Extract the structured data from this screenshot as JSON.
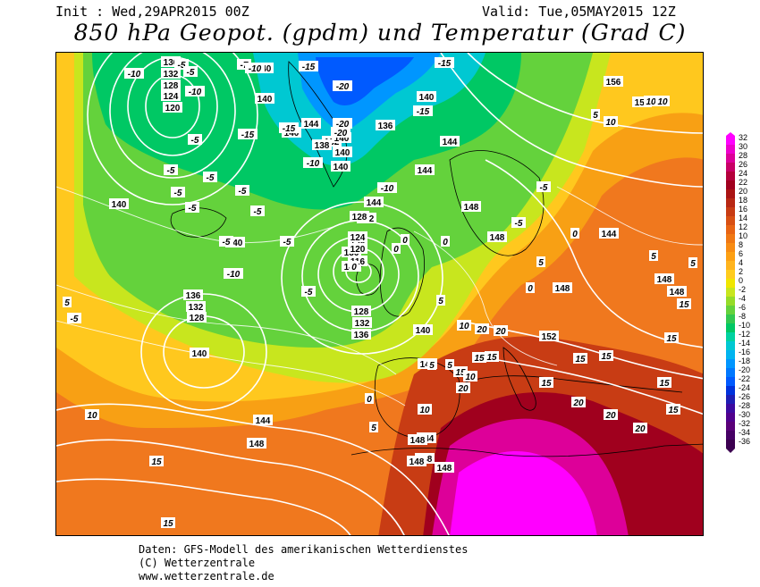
{
  "header": {
    "init": "Init : Wed,29APR2015 00Z",
    "valid": "Valid: Tue,05MAY2015 12Z",
    "title": "850 hPa Geopot. (gpdm) und Temperatur (Grad C)"
  },
  "credits": {
    "line1": "Daten: GFS-Modell des amerikanischen Wetterdienstes",
    "line2": "(C) Wetterzentrale",
    "line3": "www.wetterzentrale.de"
  },
  "legend": {
    "labels": [
      "32",
      "30",
      "28",
      "26",
      "24",
      "22",
      "20",
      "18",
      "16",
      "14",
      "12",
      "10",
      "8",
      "6",
      "4",
      "2",
      "0",
      "-2",
      "-4",
      "-6",
      "-8",
      "-10",
      "-12",
      "-14",
      "-16",
      "-18",
      "-20",
      "-22",
      "-24",
      "-26",
      "-28",
      "-30",
      "-32",
      "-34",
      "-36"
    ],
    "colors": [
      "#ff00ff",
      "#ee00cc",
      "#dd0099",
      "#c80066",
      "#b4003c",
      "#a0001e",
      "#aa1414",
      "#b82814",
      "#c83c14",
      "#d85014",
      "#e86414",
      "#f07814",
      "#f88c14",
      "#fda014",
      "#ffb41e",
      "#ffcc1e",
      "#f0e600",
      "#c8e61e",
      "#96dc28",
      "#64d23c",
      "#32c850",
      "#00c864",
      "#00d2a0",
      "#00c8d2",
      "#00b4f0",
      "#0096ff",
      "#0078ff",
      "#005aff",
      "#0032dc",
      "#1e1eb4",
      "#3c0aa0",
      "#50008c",
      "#5a0078",
      "#460064",
      "#3c0050"
    ]
  },
  "map": {
    "height_labels": [
      "136",
      "132",
      "128",
      "124",
      "120",
      "140",
      "140",
      "144",
      "140",
      "132",
      "128",
      "136",
      "140",
      "144",
      "138",
      "140",
      "140",
      "140",
      "144",
      "136",
      "140",
      "132",
      "128",
      "124",
      "120",
      "116",
      "128",
      "132",
      "136",
      "140",
      "144",
      "148",
      "148",
      "144",
      "140",
      "136",
      "132",
      "128",
      "140",
      "144",
      "148",
      "144",
      "148",
      "148",
      "152",
      "156",
      "152",
      "148",
      "148",
      "148",
      "148",
      "144",
      "148",
      "140"
    ],
    "temp_labels": [
      "-10",
      "-5",
      "-5",
      "-10",
      "-5",
      "-7",
      "-10",
      "-15",
      "-15",
      "-20",
      "-20",
      "-20",
      "-15",
      "-15",
      "-10",
      "-5",
      "-5",
      "-10",
      "-5",
      "-5",
      "-5",
      "-5",
      "-5",
      "-5",
      "-10",
      "-15",
      "-5",
      "-5",
      "-5",
      "-5",
      "0",
      "0",
      "0",
      "0",
      "0",
      "5",
      "5",
      "5",
      "5",
      "5",
      "5",
      "5",
      "10",
      "10",
      "10",
      "10",
      "15",
      "15",
      "15",
      "15",
      "15",
      "20",
      "20",
      "20",
      "20",
      "20",
      "10",
      "15",
      "15",
      "20",
      "15",
      "15",
      "15",
      "15",
      "10",
      "5",
      "0",
      "0",
      "10",
      "15",
      "5"
    ]
  }
}
